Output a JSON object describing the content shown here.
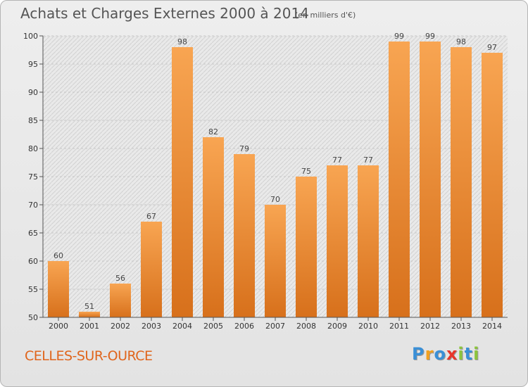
{
  "header": {
    "title": "Achats et Charges Externes 2000 à 2014",
    "subtitle": "(en milliers d'€)"
  },
  "footer": {
    "commune": "CELLES-SUR-OURCE",
    "logo_letters": [
      {
        "ch": "P",
        "color": "#3a8fd6"
      },
      {
        "ch": "r",
        "color": "#f0a020"
      },
      {
        "ch": "o",
        "color": "#3a8fd6"
      },
      {
        "ch": "x",
        "color": "#e8352a"
      },
      {
        "ch": "i",
        "color": "#8cc43c"
      },
      {
        "ch": "t",
        "color": "#3a8fd6"
      },
      {
        "ch": "i",
        "color": "#8cc43c"
      }
    ]
  },
  "colors": {
    "bar_light": "#f8a552",
    "bar_dark": "#d7701b",
    "grid": "#c8c8c8"
  },
  "chart_data": {
    "type": "bar",
    "title": "Achats et Charges Externes 2000 à 2014",
    "subtitle": "(en milliers d'€)",
    "categories": [
      "2000",
      "2001",
      "2002",
      "2003",
      "2004",
      "2005",
      "2006",
      "2007",
      "2008",
      "2009",
      "2010",
      "2011",
      "2012",
      "2013",
      "2014"
    ],
    "values": [
      60,
      51,
      56,
      67,
      98,
      82,
      79,
      70,
      75,
      77,
      77,
      99,
      99,
      98,
      97
    ],
    "ylim": [
      50,
      100
    ],
    "yticks": [
      50,
      55,
      60,
      65,
      70,
      75,
      80,
      85,
      90,
      95,
      100
    ],
    "grid": true,
    "xlabel": "",
    "ylabel": ""
  }
}
